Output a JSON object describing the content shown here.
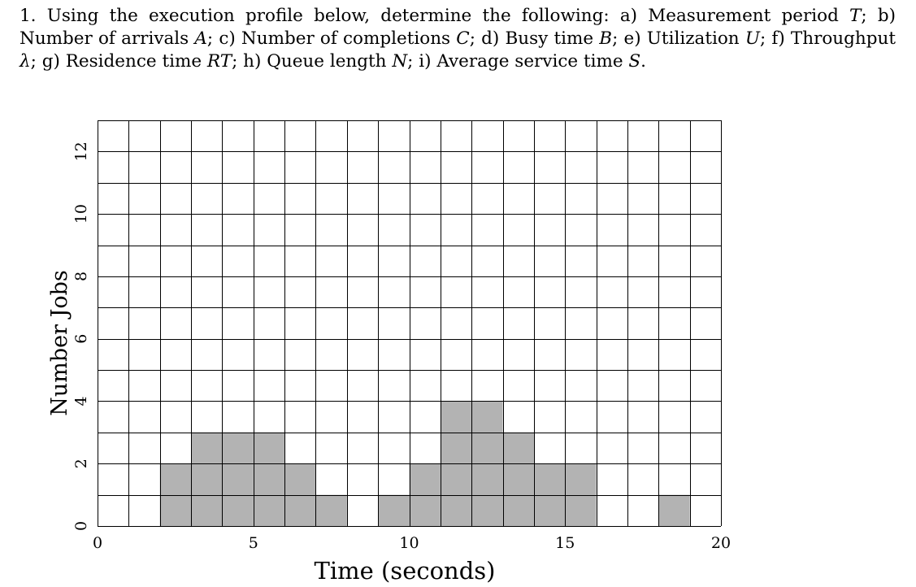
{
  "question": {
    "number": "1.",
    "parts": [
      {
        "t": "Using the execution profile below, determine the following: a) Measurement period "
      },
      {
        "t": "T",
        "i": true
      },
      {
        "t": "; b) Number of arrivals "
      },
      {
        "t": "A",
        "i": true
      },
      {
        "t": "; c) Number of completions "
      },
      {
        "t": "C",
        "i": true
      },
      {
        "t": "; d) Busy time "
      },
      {
        "t": "B",
        "i": true
      },
      {
        "t": "; e) Utilization "
      },
      {
        "t": "U",
        "i": true
      },
      {
        "t": "; f) Throughput "
      },
      {
        "t": "λ",
        "i": true
      },
      {
        "t": "; g) Residence time "
      },
      {
        "t": "RT",
        "i": true
      },
      {
        "t": "; h) Queue length "
      },
      {
        "t": "N",
        "i": true
      },
      {
        "t": "; i) Average service time "
      },
      {
        "t": "S",
        "i": true
      },
      {
        "t": "."
      }
    ]
  },
  "chart_data": {
    "type": "bar",
    "xlabel": "Time (seconds)",
    "ylabel": "Number Jobs",
    "xlim": [
      0,
      20
    ],
    "ylim": [
      0,
      13
    ],
    "xticks": [
      0,
      5,
      10,
      15,
      20
    ],
    "yticks": [
      0,
      2,
      4,
      6,
      8,
      10,
      12
    ],
    "grid": true,
    "legend": "none",
    "bar_color": "#b3b3b3",
    "intervals": [
      {
        "start": 0,
        "end": 1,
        "jobs": 0
      },
      {
        "start": 1,
        "end": 2,
        "jobs": 0
      },
      {
        "start": 2,
        "end": 3,
        "jobs": 2
      },
      {
        "start": 3,
        "end": 4,
        "jobs": 3
      },
      {
        "start": 4,
        "end": 5,
        "jobs": 3
      },
      {
        "start": 5,
        "end": 6,
        "jobs": 3
      },
      {
        "start": 6,
        "end": 7,
        "jobs": 2
      },
      {
        "start": 7,
        "end": 8,
        "jobs": 1
      },
      {
        "start": 8,
        "end": 9,
        "jobs": 0
      },
      {
        "start": 9,
        "end": 10,
        "jobs": 1
      },
      {
        "start": 10,
        "end": 11,
        "jobs": 2
      },
      {
        "start": 11,
        "end": 12,
        "jobs": 4
      },
      {
        "start": 12,
        "end": 13,
        "jobs": 4
      },
      {
        "start": 13,
        "end": 14,
        "jobs": 3
      },
      {
        "start": 14,
        "end": 15,
        "jobs": 2
      },
      {
        "start": 15,
        "end": 16,
        "jobs": 2
      },
      {
        "start": 16,
        "end": 17,
        "jobs": 0
      },
      {
        "start": 17,
        "end": 18,
        "jobs": 0
      },
      {
        "start": 18,
        "end": 19,
        "jobs": 1
      },
      {
        "start": 19,
        "end": 20,
        "jobs": 0
      }
    ]
  }
}
